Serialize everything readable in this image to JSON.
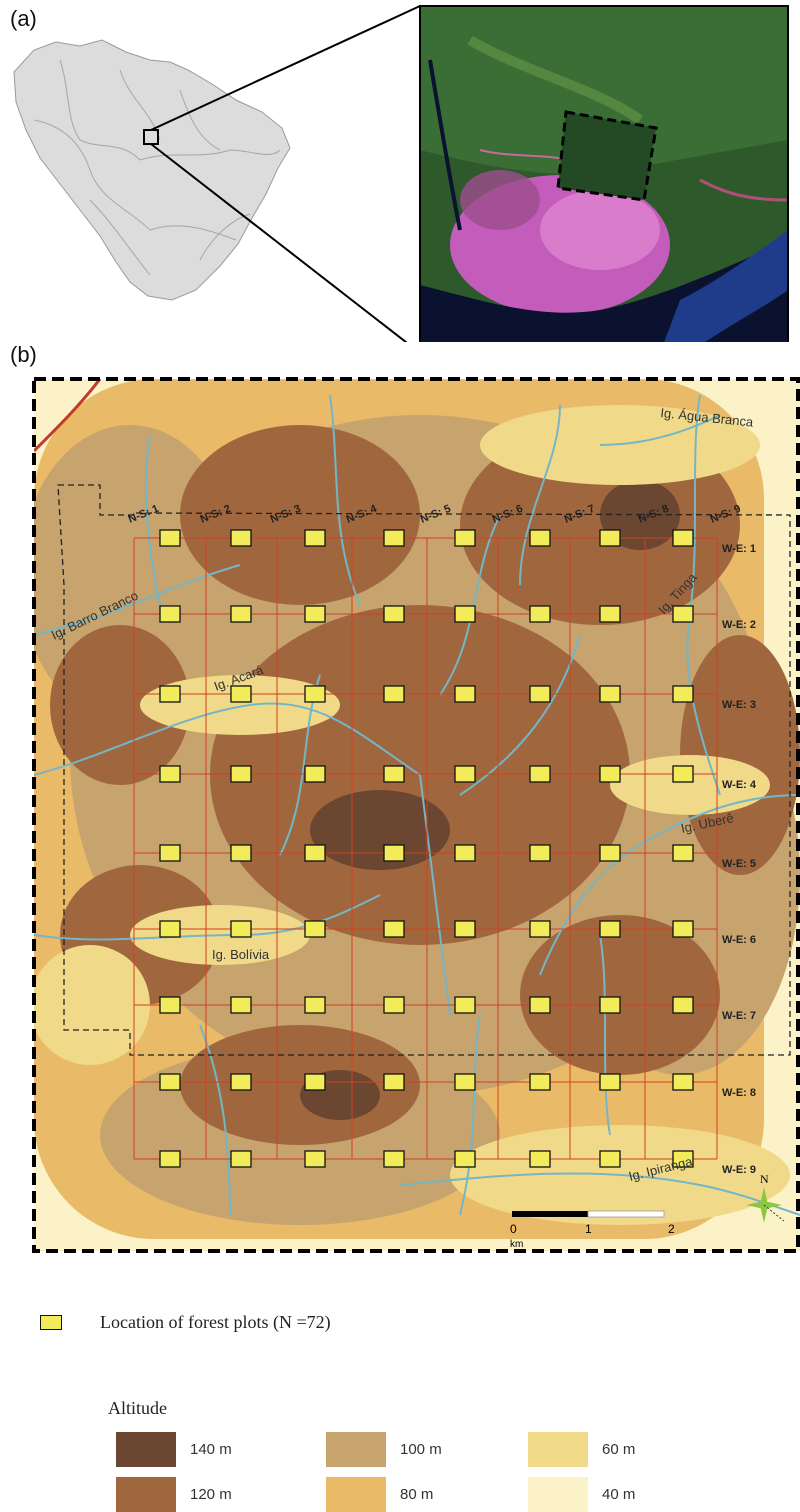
{
  "panels": {
    "a": "(a)",
    "b": "(b)"
  },
  "map": {
    "streams": [
      "Ig. Água Branca",
      "Ig. Barro Branco",
      "Ig. Tinga",
      "Ig. Acará",
      "Ig. Uberê",
      "Ig. Bolívia",
      "Ig. Ipiranga"
    ],
    "ns_labels": [
      "N-S: 1",
      "N-S: 2",
      "N-S: 3",
      "N-S: 4",
      "N-S: 5",
      "N-S: 6",
      "N-S: 7",
      "N-S: 8",
      "N-S: 9"
    ],
    "we_labels": [
      "W-E: 1",
      "W-E: 2",
      "W-E: 3",
      "W-E: 4",
      "W-E: 5",
      "W-E: 6",
      "W-E: 7",
      "W-E: 8",
      "W-E: 9"
    ],
    "north": "N",
    "scale": {
      "ticks": [
        "0",
        "1",
        "2"
      ],
      "unit": "km"
    }
  },
  "legend": {
    "plots_label": "Location of forest plots (N =72)",
    "altitude_title": "Altitude",
    "altitude": [
      {
        "label": "140 m",
        "color": "#6b4630"
      },
      {
        "label": "100 m",
        "color": "#c7a36e"
      },
      {
        "label": "60 m",
        "color": "#f1d98a"
      },
      {
        "label": "120 m",
        "color": "#a0673e"
      },
      {
        "label": "80 m",
        "color": "#e9bb68"
      },
      {
        "label": "40 m",
        "color": "#fbf2c8"
      }
    ]
  },
  "colors": {
    "plot_fill": "#f2ec5a",
    "grid": "#d2401e",
    "stream": "#74b6c6",
    "road": "#c0392b"
  }
}
